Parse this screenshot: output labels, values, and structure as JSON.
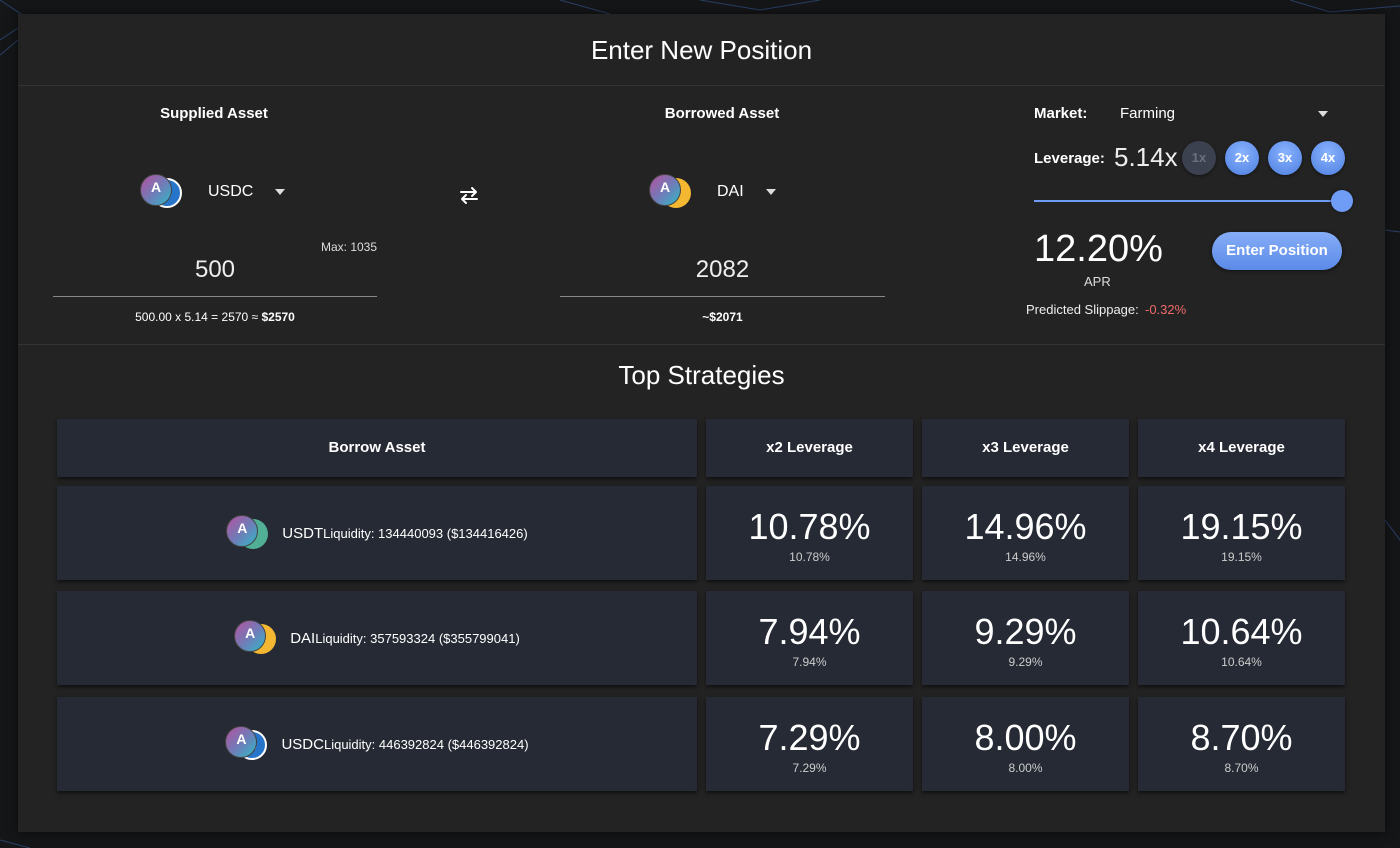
{
  "title": "Enter New Position",
  "supplied": {
    "label": "Supplied Asset",
    "asset": "USDC",
    "max": "Max: 1035",
    "amount": "500",
    "calc_prefix": "500.00 x 5.14 = 2570 ≈ ",
    "calc_total": "$2570"
  },
  "borrowed": {
    "label": "Borrowed Asset",
    "asset": "DAI",
    "amount": "2082",
    "usd": "~$2071"
  },
  "market": {
    "label": "Market:",
    "value": "Farming"
  },
  "leverage": {
    "label": "Leverage:",
    "value": "5.14x",
    "buttons": [
      "1x",
      "2x",
      "3x",
      "4x"
    ],
    "slider_fraction": 1.0
  },
  "apr": {
    "value": "12.20%",
    "label": "APR"
  },
  "enter_button": "Enter Position",
  "slippage": {
    "label": "Predicted Slippage:",
    "value": "-0.32%"
  },
  "strategies": {
    "title": "Top Strategies",
    "headers": [
      "Borrow Asset",
      "x2 Leverage",
      "x3 Leverage",
      "x4 Leverage"
    ],
    "rows": [
      {
        "symbol": "USDT",
        "liquidity": "Liquidity: 134440093 ($134416426)",
        "x2": "10.78%",
        "x2_sub": "10.78%",
        "x3": "14.96%",
        "x3_sub": "14.96%",
        "x4": "19.15%",
        "x4_sub": "19.15%"
      },
      {
        "symbol": "DAI",
        "liquidity": "Liquidity: 357593324 ($355799041)",
        "x2": "7.94%",
        "x2_sub": "7.94%",
        "x3": "9.29%",
        "x3_sub": "9.29%",
        "x4": "10.64%",
        "x4_sub": "10.64%"
      },
      {
        "symbol": "USDC",
        "liquidity": "Liquidity: 446392824 ($446392824)",
        "x2": "7.29%",
        "x2_sub": "7.29%",
        "x3": "8.00%",
        "x3_sub": "8.00%",
        "x4": "8.70%",
        "x4_sub": "8.70%"
      }
    ]
  },
  "colors": {
    "accent": "#6f9cf4",
    "negative": "#f06a6a",
    "card": "#232323",
    "cell": "#262a34"
  }
}
